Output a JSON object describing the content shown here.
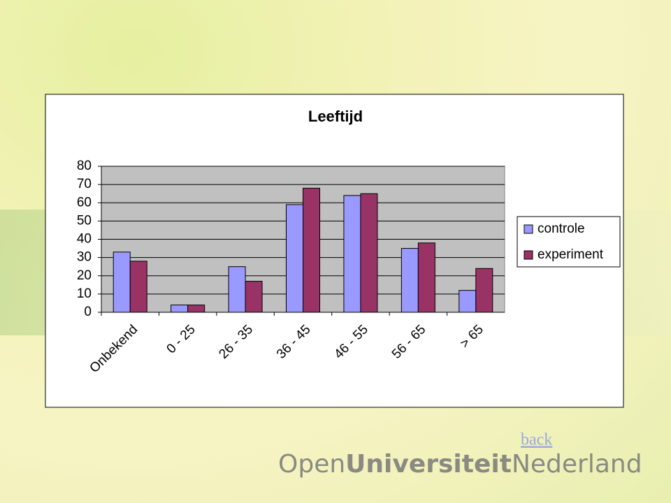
{
  "chart_data": {
    "type": "bar",
    "title": "Leeftijd",
    "categories": [
      "Onbekend",
      "0 - 25",
      "26 - 35",
      "36 - 45",
      "46 - 55",
      "56 - 65",
      "> 65"
    ],
    "series": [
      {
        "name": "controle",
        "color": "#9999ff",
        "values": [
          33,
          4,
          25,
          59,
          64,
          35,
          12
        ]
      },
      {
        "name": "experiment",
        "color": "#993366",
        "values": [
          28,
          4,
          17,
          68,
          65,
          38,
          24
        ]
      }
    ],
    "ylim": [
      0,
      80
    ],
    "yticks": [
      0,
      10,
      20,
      30,
      40,
      50,
      60,
      70,
      80
    ],
    "grid": true,
    "legend": "right"
  },
  "link": "back",
  "logo": [
    "Open",
    "Universiteit",
    "Nederland"
  ]
}
